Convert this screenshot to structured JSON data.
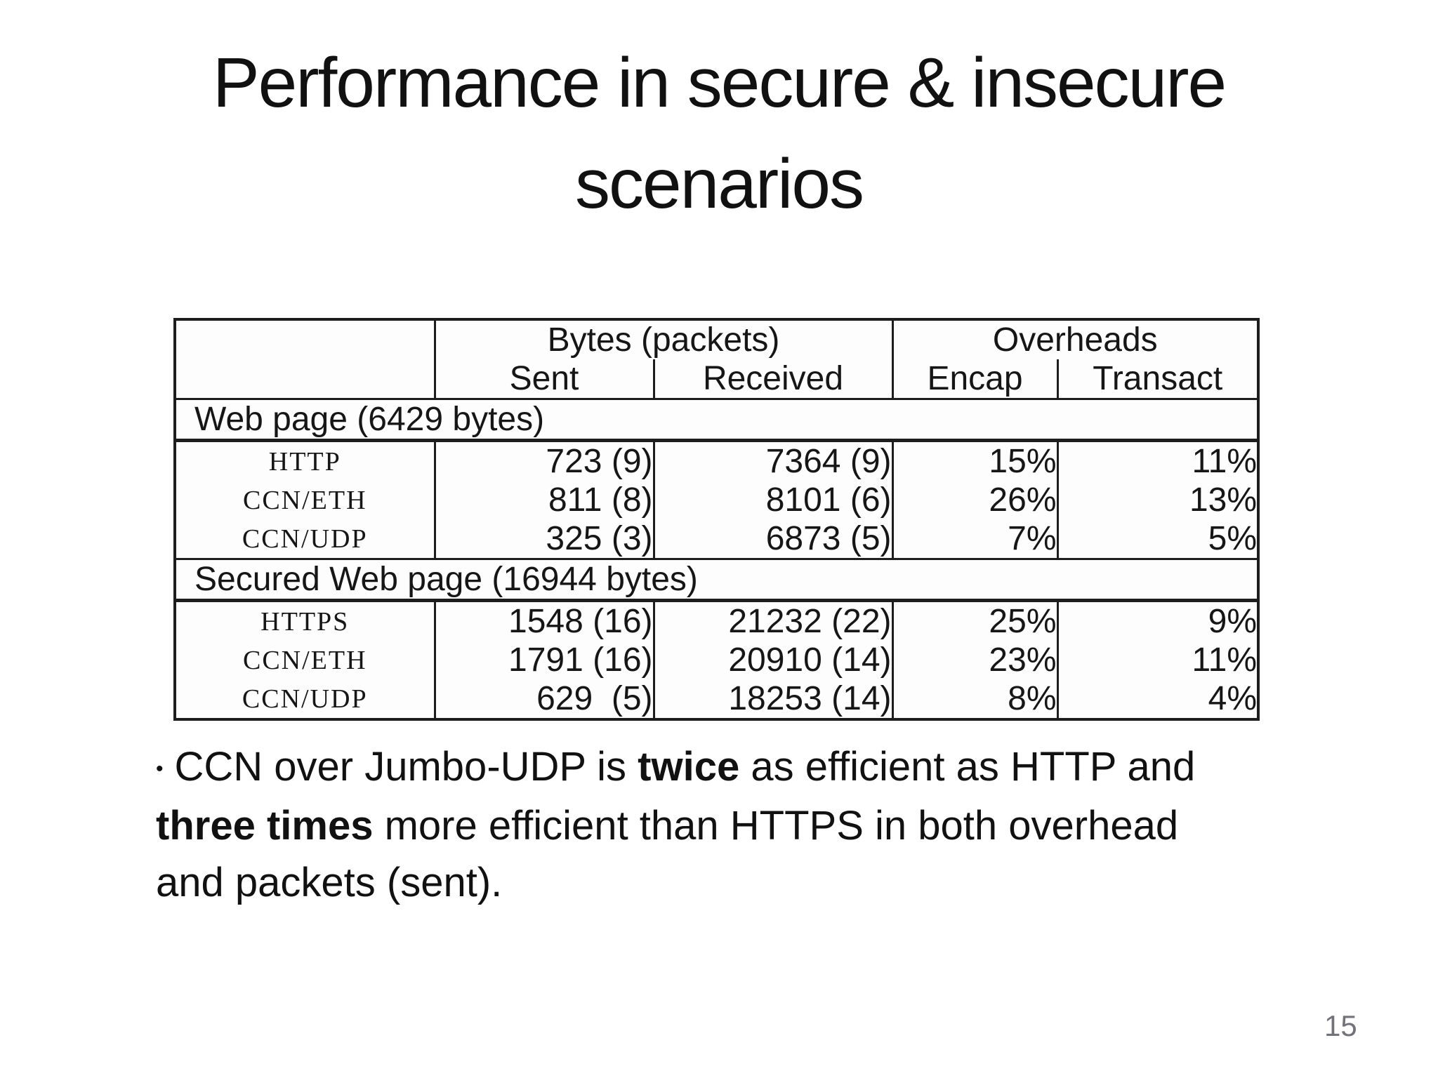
{
  "slide": {
    "title_lines": [
      "Performance in secure & insecure",
      "scenarios"
    ],
    "page_number": "15",
    "colors": {
      "background": "#ffffff",
      "text": "#111111",
      "table_border": "#1d1d1d",
      "page_number": "#72727a"
    }
  },
  "table": {
    "corner": "",
    "group_headers": [
      {
        "label": "Bytes (packets)"
      },
      {
        "label": "Overheads"
      }
    ],
    "sub_headers": [
      "Sent",
      "Received",
      "Encap",
      "Transact"
    ],
    "sections": [
      {
        "label": "Web page (6429 bytes)",
        "rows": [
          {
            "label": "HTTP",
            "sent": "723 (9)",
            "received": "7364 (9)",
            "encap": "15%",
            "transact": "11%"
          },
          {
            "label": "CCN/ETH",
            "sent": "811 (8)",
            "received": "8101 (6)",
            "encap": "26%",
            "transact": "13%"
          },
          {
            "label": "CCN/UDP",
            "sent": "325 (3)",
            "received": "6873 (5)",
            "encap": "7%",
            "transact": "5%"
          }
        ]
      },
      {
        "label": "Secured Web page (16944 bytes)",
        "rows": [
          {
            "label": "HTTPS",
            "sent": "1548 (16)",
            "received": "21232 (22)",
            "encap": "25%",
            "transact": "9%"
          },
          {
            "label": "CCN/ETH",
            "sent": "1791 (16)",
            "received": "20910 (14)",
            "encap": "23%",
            "transact": "11%"
          },
          {
            "label": "CCN/UDP",
            "sent": "629  (5)",
            "received": "18253 (14)",
            "encap": "8%",
            "transact": "4%"
          }
        ]
      }
    ]
  },
  "bullet": {
    "marker": "•",
    "lines": [
      [
        "CCN over Jumbo-UDP is ",
        "twice",
        " as efficient as HTTP and"
      ],
      [
        "three times",
        " more efficient than HTTPS in both overhead"
      ],
      [
        "and packets (sent)."
      ]
    ]
  }
}
